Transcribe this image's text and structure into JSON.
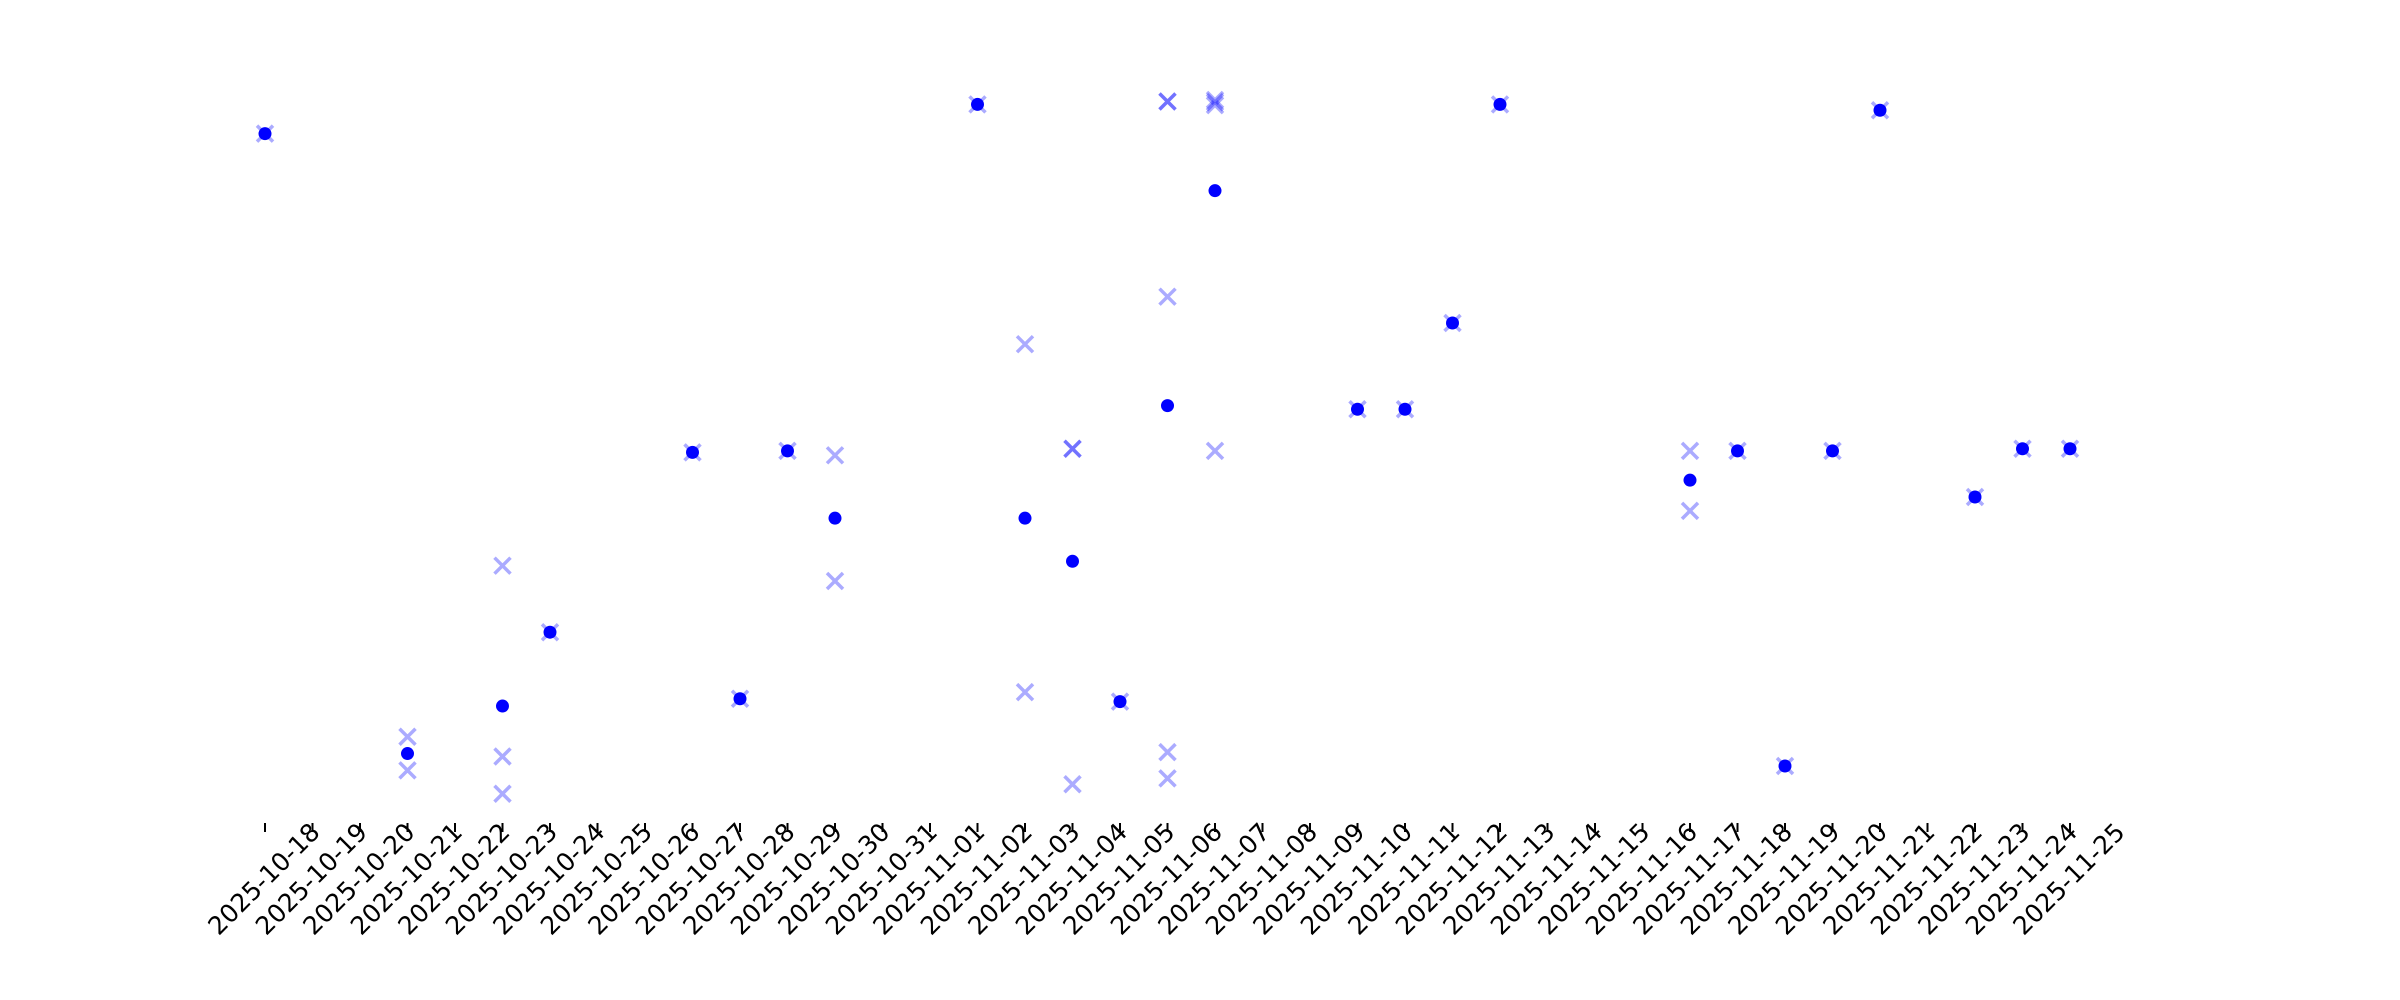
{
  "chart_data": {
    "type": "scatter",
    "title": "",
    "xlabel": "",
    "ylabel": "",
    "y_axis_visible": false,
    "ylim": [
      0,
      100
    ],
    "grid": false,
    "legend": "none",
    "colors": {
      "point": "#0000ff",
      "cross": "#0000ff",
      "cross_opacity": 0.33
    },
    "x_ticks": [
      "2025-10-18",
      "2025-10-19",
      "2025-10-20",
      "2025-10-21",
      "2025-10-22",
      "2025-10-23",
      "2025-10-24",
      "2025-10-25",
      "2025-10-26",
      "2025-10-27",
      "2025-10-28",
      "2025-10-29",
      "2025-10-30",
      "2025-10-31",
      "2025-11-01",
      "2025-11-02",
      "2025-11-03",
      "2025-11-04",
      "2025-11-05",
      "2025-11-06",
      "2025-11-07",
      "2025-11-08",
      "2025-11-09",
      "2025-11-10",
      "2025-11-11",
      "2025-11-12",
      "2025-11-13",
      "2025-11-14",
      "2025-11-15",
      "2025-11-16",
      "2025-11-17",
      "2025-11-18",
      "2025-11-19",
      "2025-11-20",
      "2025-11-21",
      "2025-11-22",
      "2025-11-23",
      "2025-11-24",
      "2025-11-25"
    ],
    "points": [
      {
        "x": "2025-10-18",
        "y": 94.3
      },
      {
        "x": "2025-10-21",
        "y": 9.5
      },
      {
        "x": "2025-10-23",
        "y": 16.0
      },
      {
        "x": "2025-10-24",
        "y": 26.1
      },
      {
        "x": "2025-10-27",
        "y": 50.7
      },
      {
        "x": "2025-10-28",
        "y": 17.0
      },
      {
        "x": "2025-10-29",
        "y": 50.9
      },
      {
        "x": "2025-10-30",
        "y": 41.7
      },
      {
        "x": "2025-11-02",
        "y": 98.3
      },
      {
        "x": "2025-11-03",
        "y": 41.7
      },
      {
        "x": "2025-11-04",
        "y": 35.8
      },
      {
        "x": "2025-11-05",
        "y": 16.6
      },
      {
        "x": "2025-11-06",
        "y": 57.1
      },
      {
        "x": "2025-11-07",
        "y": 86.5
      },
      {
        "x": "2025-11-10",
        "y": 56.6
      },
      {
        "x": "2025-11-11",
        "y": 56.6
      },
      {
        "x": "2025-11-12",
        "y": 68.4
      },
      {
        "x": "2025-11-13",
        "y": 98.3
      },
      {
        "x": "2025-11-17",
        "y": 46.9
      },
      {
        "x": "2025-11-18",
        "y": 50.9
      },
      {
        "x": "2025-11-19",
        "y": 7.8
      },
      {
        "x": "2025-11-20",
        "y": 50.9
      },
      {
        "x": "2025-11-21",
        "y": 97.5
      },
      {
        "x": "2025-11-23",
        "y": 44.6
      },
      {
        "x": "2025-11-24",
        "y": 51.2
      },
      {
        "x": "2025-11-25",
        "y": 51.2
      }
    ],
    "crosses": [
      {
        "x": "2025-10-18",
        "y": 94.3
      },
      {
        "x": "2025-10-21",
        "y": 11.8
      },
      {
        "x": "2025-10-21",
        "y": 7.2
      },
      {
        "x": "2025-10-23",
        "y": 35.2
      },
      {
        "x": "2025-10-23",
        "y": 9.1
      },
      {
        "x": "2025-10-23",
        "y": 4.0
      },
      {
        "x": "2025-10-24",
        "y": 26.1
      },
      {
        "x": "2025-10-27",
        "y": 50.7
      },
      {
        "x": "2025-10-28",
        "y": 17.0
      },
      {
        "x": "2025-10-29",
        "y": 50.9
      },
      {
        "x": "2025-10-30",
        "y": 50.3
      },
      {
        "x": "2025-10-30",
        "y": 33.1
      },
      {
        "x": "2025-11-02",
        "y": 98.3
      },
      {
        "x": "2025-11-03",
        "y": 65.5
      },
      {
        "x": "2025-11-03",
        "y": 17.9
      },
      {
        "x": "2025-11-04",
        "y": 51.2
      },
      {
        "x": "2025-11-04",
        "y": 51.2
      },
      {
        "x": "2025-11-04",
        "y": 5.3
      },
      {
        "x": "2025-11-05",
        "y": 16.6
      },
      {
        "x": "2025-11-06",
        "y": 98.7
      },
      {
        "x": "2025-11-06",
        "y": 98.7
      },
      {
        "x": "2025-11-06",
        "y": 72.0
      },
      {
        "x": "2025-11-06",
        "y": 9.7
      },
      {
        "x": "2025-11-06",
        "y": 6.1
      },
      {
        "x": "2025-11-07",
        "y": 98.9
      },
      {
        "x": "2025-11-07",
        "y": 98.2
      },
      {
        "x": "2025-11-07",
        "y": 98.6
      },
      {
        "x": "2025-11-07",
        "y": 50.9
      },
      {
        "x": "2025-11-10",
        "y": 56.6
      },
      {
        "x": "2025-11-11",
        "y": 56.6
      },
      {
        "x": "2025-11-12",
        "y": 68.4
      },
      {
        "x": "2025-11-13",
        "y": 98.3
      },
      {
        "x": "2025-11-17",
        "y": 50.9
      },
      {
        "x": "2025-11-17",
        "y": 42.7
      },
      {
        "x": "2025-11-18",
        "y": 50.9
      },
      {
        "x": "2025-11-19",
        "y": 7.8
      },
      {
        "x": "2025-11-20",
        "y": 50.9
      },
      {
        "x": "2025-11-21",
        "y": 97.5
      },
      {
        "x": "2025-11-23",
        "y": 44.6
      },
      {
        "x": "2025-11-24",
        "y": 51.2
      },
      {
        "x": "2025-11-25",
        "y": 51.2
      }
    ]
  }
}
